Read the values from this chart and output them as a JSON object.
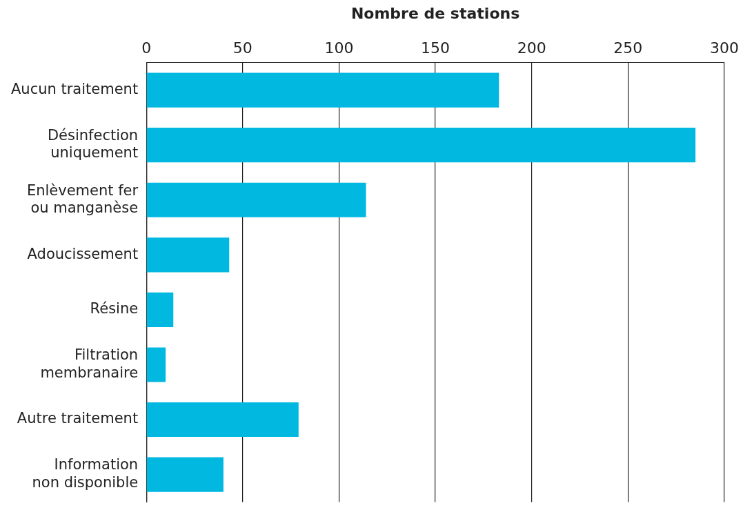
{
  "chart_data": {
    "type": "bar",
    "orientation": "horizontal",
    "xlabel": "Nombre de stations",
    "categories": [
      "Aucun traitement",
      "Désinfection uniquement",
      "Enlèvement fer ou manganèse",
      "Adoucissement",
      "Résine",
      "Filtration membranaire",
      "Autre traitement",
      "Information non disponible"
    ],
    "values": [
      183,
      285,
      114,
      43,
      14,
      10,
      79,
      40
    ],
    "color": "#00b8e0",
    "xlim": [
      0,
      300
    ],
    "xticks": [
      0,
      50,
      100,
      150,
      200,
      250,
      300
    ],
    "grid": "x",
    "legend": false
  }
}
